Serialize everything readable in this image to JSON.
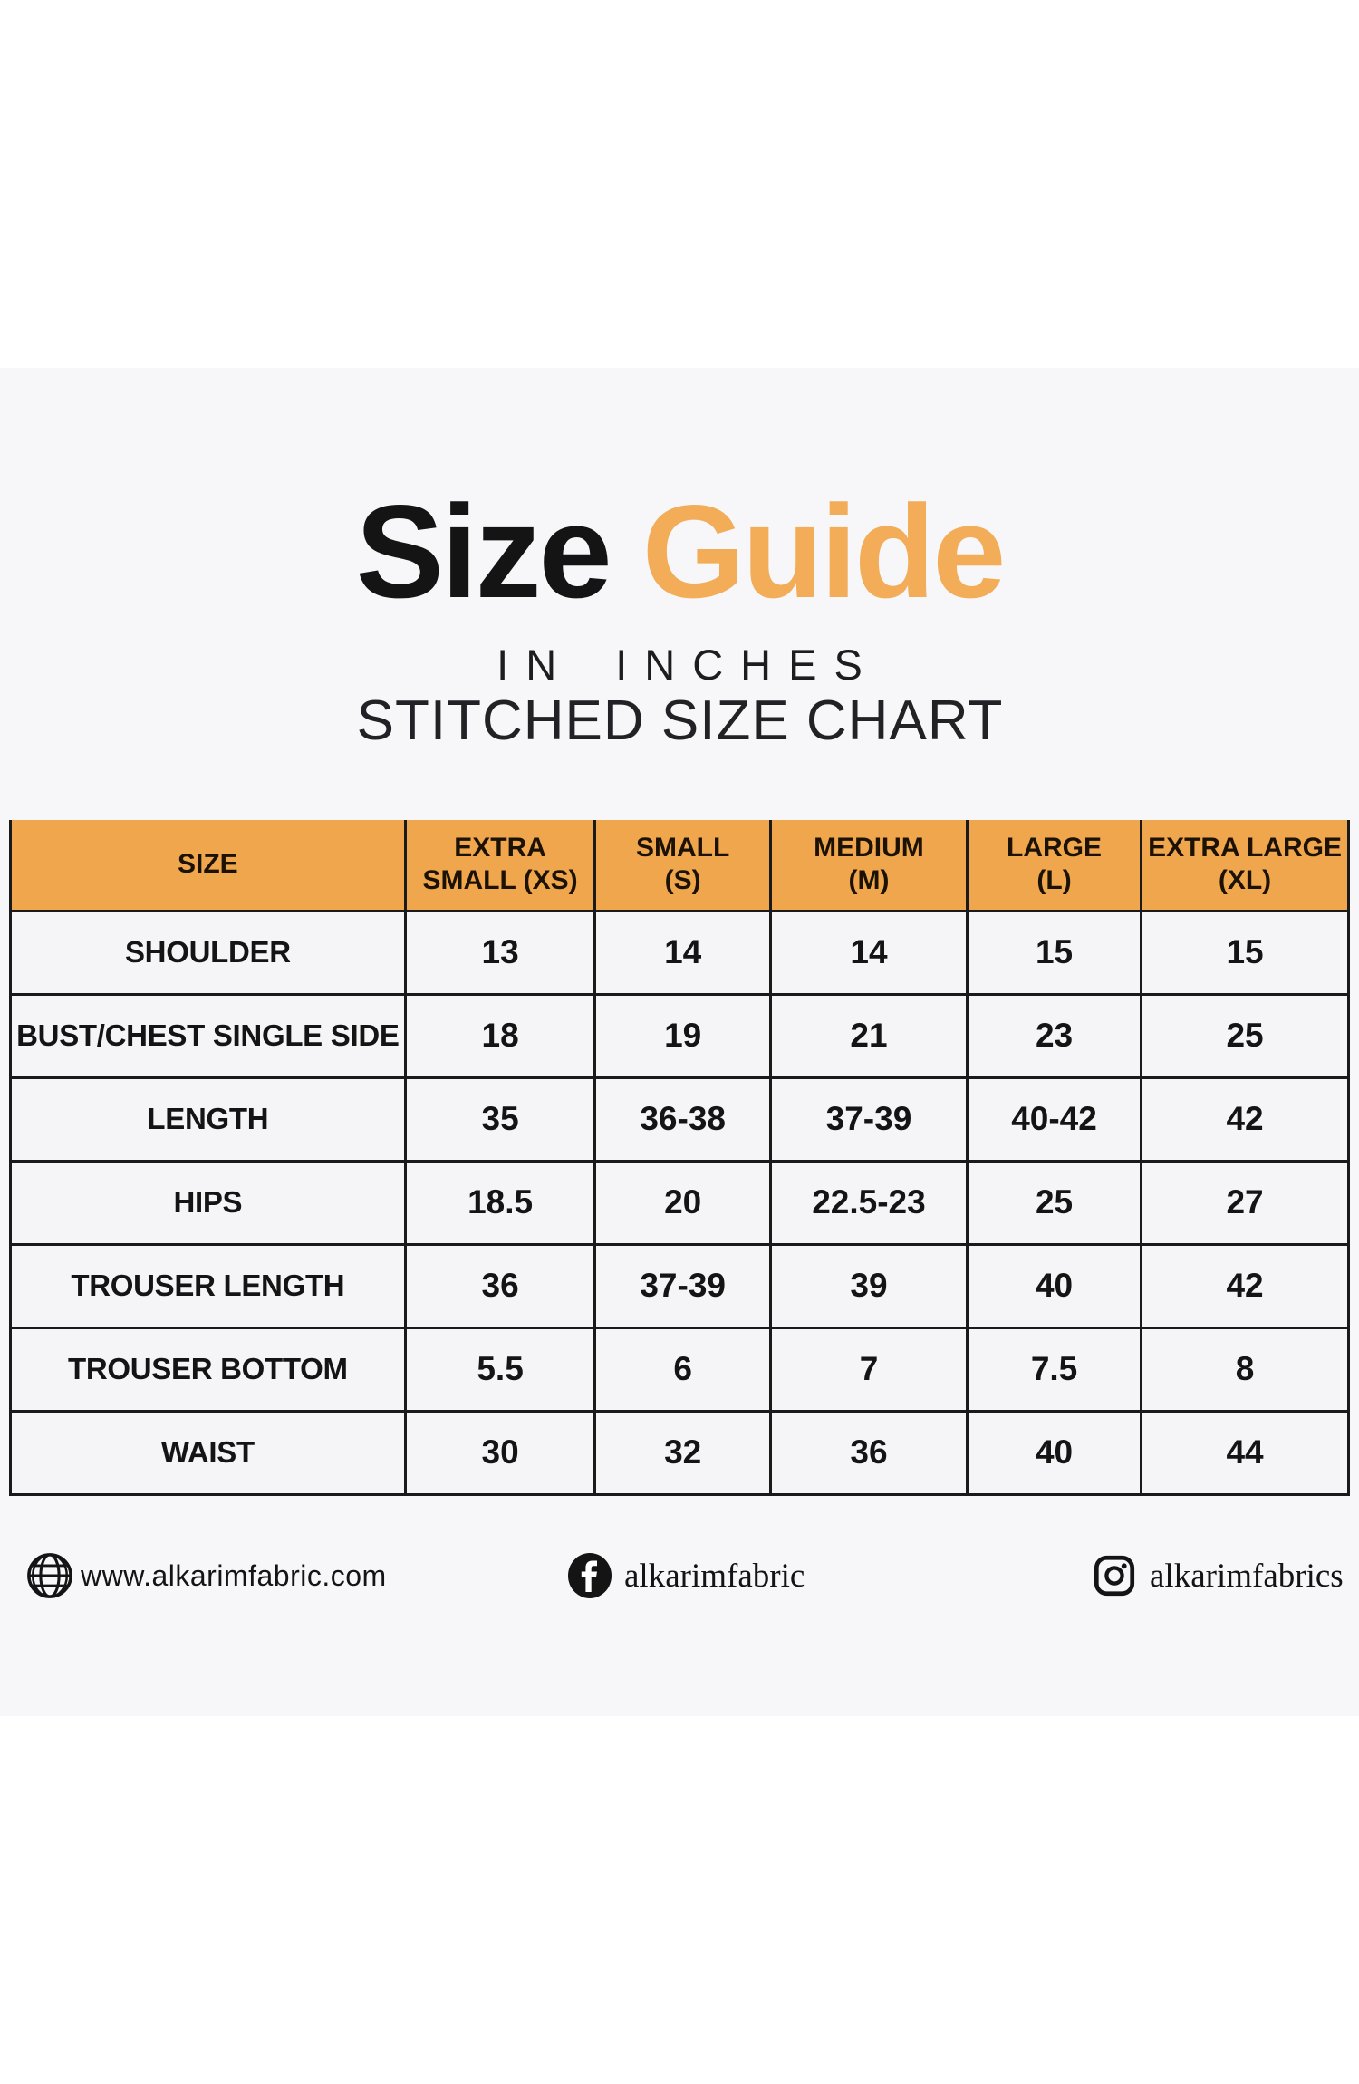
{
  "page": {
    "title_black": "Size",
    "title_orange": "Guide",
    "subtitle_line1": "IN INCHES",
    "subtitle_line2": "STITCHED SIZE CHART"
  },
  "colors": {
    "accent_orange": "#F3AC58",
    "header_orange": "#F0A64C",
    "band_bg": "#F7F7F9",
    "cell_bg": "#F5F5F7",
    "line_color": "#1A1A1A",
    "ink": "#141414"
  },
  "chart_data": {
    "type": "table",
    "title": "Size Guide",
    "subtitle": "In inches — stitched size chart",
    "columns": [
      "SIZE",
      "EXTRA\nSMALL (XS)",
      "SMALL\n(S)",
      "MEDIUM\n(M)",
      "LARGE\n(L)",
      "EXTRA LARGE\n(XL)"
    ],
    "rows": [
      {
        "label": "SHOULDER",
        "values": [
          "13",
          "14",
          "14",
          "15",
          "15"
        ]
      },
      {
        "label": "BUST/CHEST SINGLE SIDE",
        "values": [
          "18",
          "19",
          "21",
          "23",
          "25"
        ]
      },
      {
        "label": "LENGTH",
        "values": [
          "35",
          "36-38",
          "37-39",
          "40-42",
          "42"
        ]
      },
      {
        "label": "HIPS",
        "values": [
          "18.5",
          "20",
          "22.5-23",
          "25",
          "27"
        ]
      },
      {
        "label": "TROUSER LENGTH",
        "values": [
          "36",
          "37-39",
          "39",
          "40",
          "42"
        ]
      },
      {
        "label": "TROUSER BOTTOM",
        "values": [
          "5.5",
          "6",
          "7",
          "7.5",
          "8"
        ]
      },
      {
        "label": "WAIST",
        "values": [
          "30",
          "32",
          "36",
          "40",
          "44"
        ]
      }
    ]
  },
  "footer": {
    "website": "www.alkarimfabric.com",
    "facebook": "alkarimfabric",
    "instagram": "alkarimfabrics"
  }
}
